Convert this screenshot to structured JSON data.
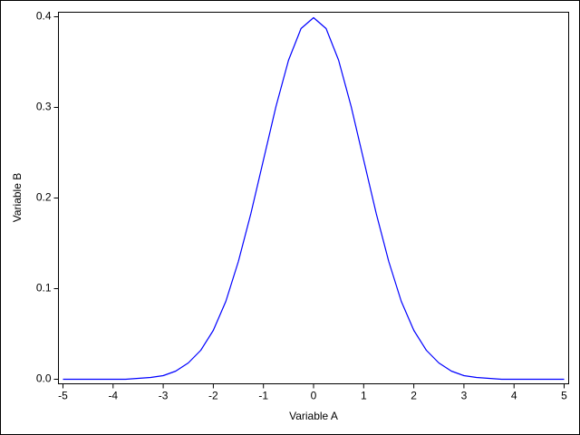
{
  "chart_data": {
    "type": "line",
    "x_label": "Variable A",
    "y_label": "Variable B",
    "x": [
      -5,
      -4.75,
      -4.5,
      -4.25,
      -4,
      -3.75,
      -3.5,
      -3.25,
      -3,
      -2.75,
      -2.5,
      -2.25,
      -2,
      -1.75,
      -1.5,
      -1.25,
      -1,
      -0.75,
      -0.5,
      -0.25,
      0,
      0.25,
      0.5,
      0.75,
      1,
      1.25,
      1.5,
      1.75,
      2,
      2.25,
      2.5,
      2.75,
      3,
      3.25,
      3.5,
      3.75,
      4,
      4.25,
      4.5,
      4.75,
      5
    ],
    "values": [
      0,
      0,
      0,
      0,
      0,
      0,
      0.001,
      0.002,
      0.004,
      0.009,
      0.018,
      0.032,
      0.054,
      0.086,
      0.13,
      0.183,
      0.242,
      0.301,
      0.352,
      0.387,
      0.399,
      0.387,
      0.352,
      0.301,
      0.242,
      0.183,
      0.13,
      0.086,
      0.054,
      0.032,
      0.018,
      0.009,
      0.004,
      0.002,
      0.001,
      0,
      0,
      0,
      0,
      0,
      0
    ],
    "color": "#0000ff",
    "xlim": [
      -5.09,
      5.09
    ],
    "xticks": [
      -5,
      -4,
      -3,
      -2,
      -1,
      0,
      1,
      2,
      3,
      4,
      5
    ],
    "ylim": [
      -0.005,
      0.405
    ],
    "yticks": [
      {
        "value": 0,
        "label": "0.0"
      },
      0.1,
      0.2,
      0.3,
      0.4
    ]
  }
}
